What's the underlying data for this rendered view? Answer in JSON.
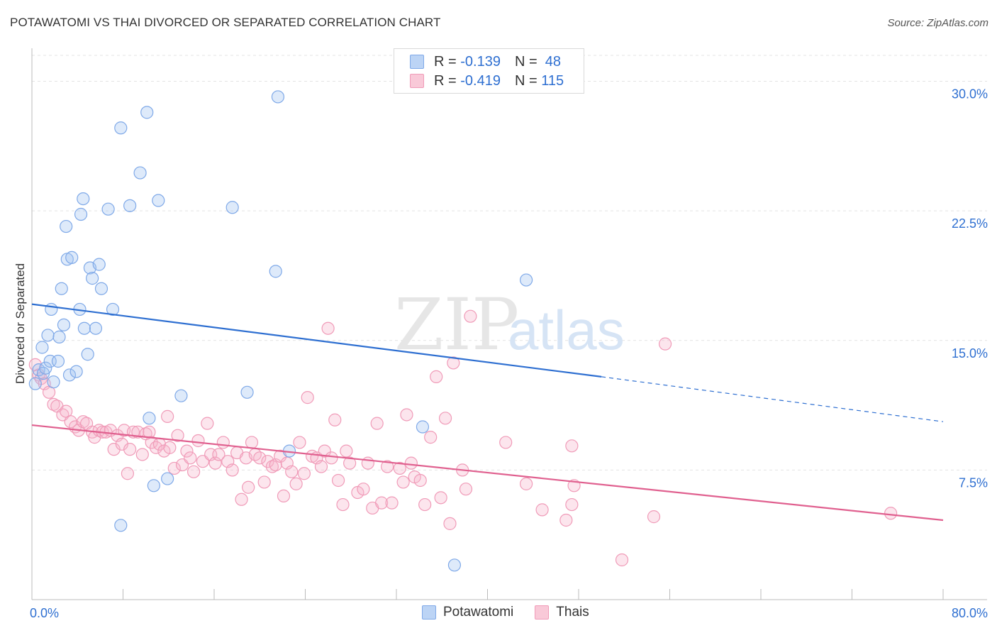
{
  "title": "POTAWATOMI VS THAI DIVORCED OR SEPARATED CORRELATION CHART",
  "source": "Source: ZipAtlas.com",
  "watermark": {
    "zip": "ZIP",
    "atlas": "atlas"
  },
  "legend": {
    "rows": [
      {
        "r_label": "R =",
        "r_value": "-0.139",
        "n_label": "N =",
        "n_value": "48"
      },
      {
        "r_label": "R =",
        "r_value": "-0.419",
        "n_label": "N =",
        "n_value": "115"
      }
    ]
  },
  "bottom_legend": [
    "Potawatomi",
    "Thais"
  ],
  "chart_data": {
    "type": "scatter",
    "title": "POTAWATOMI VS THAI DIVORCED OR SEPARATED CORRELATION CHART",
    "xlabel": "",
    "ylabel": "Divorced or Separated",
    "xlim": [
      0,
      80
    ],
    "ylim": [
      0,
      31.5
    ],
    "x_tick_labels": [
      "0.0%",
      "80.0%"
    ],
    "y_ticks": [
      7.5,
      15.0,
      22.5,
      30.0
    ],
    "y_tick_labels": [
      "7.5%",
      "15.0%",
      "22.5%",
      "30.0%"
    ],
    "grid": true,
    "legend_placement": "top-center",
    "colors": {
      "potawatomi": "#7fa9e8",
      "thais": "#f09bb8",
      "potawatomi_line": "#2e6fd1",
      "thais_line": "#e0608f"
    },
    "series": [
      {
        "name": "Potawatomi",
        "points": [
          [
            0.3,
            12.5
          ],
          [
            0.6,
            13.3
          ],
          [
            0.9,
            14.6
          ],
          [
            1.0,
            13.1
          ],
          [
            1.2,
            13.4
          ],
          [
            1.4,
            15.3
          ],
          [
            1.6,
            13.8
          ],
          [
            1.7,
            16.8
          ],
          [
            1.9,
            12.6
          ],
          [
            2.3,
            13.8
          ],
          [
            2.4,
            15.2
          ],
          [
            2.6,
            18.0
          ],
          [
            2.8,
            15.9
          ],
          [
            3.0,
            21.6
          ],
          [
            3.1,
            19.7
          ],
          [
            3.3,
            13.0
          ],
          [
            3.5,
            19.8
          ],
          [
            3.9,
            13.2
          ],
          [
            4.2,
            16.8
          ],
          [
            4.3,
            22.3
          ],
          [
            4.5,
            23.2
          ],
          [
            4.6,
            15.7
          ],
          [
            4.9,
            14.2
          ],
          [
            5.1,
            19.2
          ],
          [
            5.3,
            18.6
          ],
          [
            5.6,
            15.7
          ],
          [
            5.9,
            19.4
          ],
          [
            6.1,
            18.0
          ],
          [
            6.7,
            22.6
          ],
          [
            7.1,
            16.8
          ],
          [
            7.8,
            27.3
          ],
          [
            7.8,
            4.3
          ],
          [
            8.6,
            22.8
          ],
          [
            9.5,
            24.7
          ],
          [
            10.1,
            28.2
          ],
          [
            10.3,
            10.5
          ],
          [
            10.7,
            6.6
          ],
          [
            11.1,
            23.1
          ],
          [
            11.9,
            7.0
          ],
          [
            13.1,
            11.8
          ],
          [
            17.6,
            22.7
          ],
          [
            18.9,
            12.0
          ],
          [
            21.6,
            29.1
          ],
          [
            21.4,
            19.0
          ],
          [
            22.6,
            8.6
          ],
          [
            34.3,
            10.0
          ],
          [
            37.1,
            2.0
          ],
          [
            43.4,
            18.5
          ]
        ]
      },
      {
        "name": "Thais",
        "points": [
          [
            0.3,
            13.6
          ],
          [
            0.6,
            13.0
          ],
          [
            0.8,
            12.8
          ],
          [
            1.1,
            12.5
          ],
          [
            1.5,
            12.0
          ],
          [
            1.9,
            11.3
          ],
          [
            2.2,
            11.2
          ],
          [
            2.7,
            10.7
          ],
          [
            3.0,
            10.9
          ],
          [
            3.4,
            10.3
          ],
          [
            3.8,
            10.0
          ],
          [
            4.1,
            9.8
          ],
          [
            4.5,
            10.3
          ],
          [
            4.8,
            10.2
          ],
          [
            5.3,
            9.7
          ],
          [
            5.5,
            9.4
          ],
          [
            5.9,
            9.8
          ],
          [
            6.2,
            9.7
          ],
          [
            6.5,
            9.7
          ],
          [
            6.9,
            9.8
          ],
          [
            7.2,
            8.7
          ],
          [
            7.5,
            9.5
          ],
          [
            7.9,
            9.0
          ],
          [
            8.1,
            9.8
          ],
          [
            8.4,
            7.3
          ],
          [
            8.6,
            8.7
          ],
          [
            8.9,
            9.7
          ],
          [
            9.3,
            9.7
          ],
          [
            9.7,
            8.4
          ],
          [
            10.0,
            9.6
          ],
          [
            10.3,
            9.7
          ],
          [
            10.5,
            9.1
          ],
          [
            10.9,
            8.8
          ],
          [
            11.2,
            9.0
          ],
          [
            11.6,
            8.6
          ],
          [
            11.9,
            10.6
          ],
          [
            12.1,
            8.8
          ],
          [
            12.5,
            7.6
          ],
          [
            12.8,
            9.5
          ],
          [
            13.2,
            7.8
          ],
          [
            13.6,
            8.6
          ],
          [
            13.9,
            8.2
          ],
          [
            14.2,
            7.4
          ],
          [
            14.6,
            9.2
          ],
          [
            15.0,
            8.0
          ],
          [
            15.4,
            10.2
          ],
          [
            15.7,
            8.4
          ],
          [
            16.1,
            7.9
          ],
          [
            16.4,
            8.4
          ],
          [
            16.8,
            9.1
          ],
          [
            17.2,
            8.0
          ],
          [
            17.6,
            7.5
          ],
          [
            18.0,
            8.5
          ],
          [
            18.4,
            5.8
          ],
          [
            18.8,
            8.2
          ],
          [
            19.0,
            6.5
          ],
          [
            19.3,
            9.1
          ],
          [
            19.6,
            8.4
          ],
          [
            20.0,
            8.2
          ],
          [
            20.4,
            6.8
          ],
          [
            20.7,
            8.0
          ],
          [
            21.1,
            7.7
          ],
          [
            21.4,
            7.8
          ],
          [
            21.8,
            8.3
          ],
          [
            22.1,
            6.0
          ],
          [
            22.4,
            7.9
          ],
          [
            22.8,
            7.4
          ],
          [
            23.2,
            6.7
          ],
          [
            23.5,
            9.1
          ],
          [
            23.9,
            7.3
          ],
          [
            24.2,
            11.7
          ],
          [
            24.6,
            8.3
          ],
          [
            25.0,
            8.2
          ],
          [
            25.4,
            7.7
          ],
          [
            25.7,
            8.6
          ],
          [
            26.0,
            15.7
          ],
          [
            26.3,
            8.2
          ],
          [
            26.6,
            10.4
          ],
          [
            26.9,
            6.9
          ],
          [
            27.3,
            5.5
          ],
          [
            27.6,
            8.6
          ],
          [
            27.9,
            7.9
          ],
          [
            28.6,
            6.2
          ],
          [
            29.1,
            6.4
          ],
          [
            29.5,
            7.9
          ],
          [
            29.9,
            5.3
          ],
          [
            30.3,
            10.2
          ],
          [
            30.7,
            5.6
          ],
          [
            31.2,
            7.7
          ],
          [
            31.6,
            5.6
          ],
          [
            32.3,
            7.6
          ],
          [
            32.6,
            6.8
          ],
          [
            32.9,
            10.7
          ],
          [
            33.3,
            7.9
          ],
          [
            33.6,
            7.1
          ],
          [
            34.1,
            6.9
          ],
          [
            34.5,
            5.5
          ],
          [
            35.0,
            9.4
          ],
          [
            35.5,
            12.9
          ],
          [
            35.9,
            5.9
          ],
          [
            36.3,
            10.5
          ],
          [
            36.7,
            4.4
          ],
          [
            37.0,
            13.7
          ],
          [
            37.8,
            7.5
          ],
          [
            38.5,
            16.4
          ],
          [
            38.1,
            6.4
          ],
          [
            41.6,
            9.1
          ],
          [
            43.4,
            6.7
          ],
          [
            44.8,
            5.2
          ],
          [
            46.9,
            4.6
          ],
          [
            47.4,
            5.5
          ],
          [
            47.6,
            6.6
          ],
          [
            47.4,
            8.9
          ],
          [
            51.8,
            2.3
          ],
          [
            54.6,
            4.8
          ],
          [
            55.6,
            14.8
          ],
          [
            75.4,
            5.0
          ]
        ]
      }
    ],
    "trend_lines": [
      {
        "name": "Potawatomi",
        "solid": [
          [
            0,
            17.1
          ],
          [
            50,
            12.9
          ]
        ],
        "dashed": [
          [
            50,
            12.9
          ],
          [
            80,
            10.3
          ]
        ]
      },
      {
        "name": "Thais",
        "solid": [
          [
            0,
            10.1
          ],
          [
            80,
            4.6
          ]
        ]
      }
    ]
  }
}
